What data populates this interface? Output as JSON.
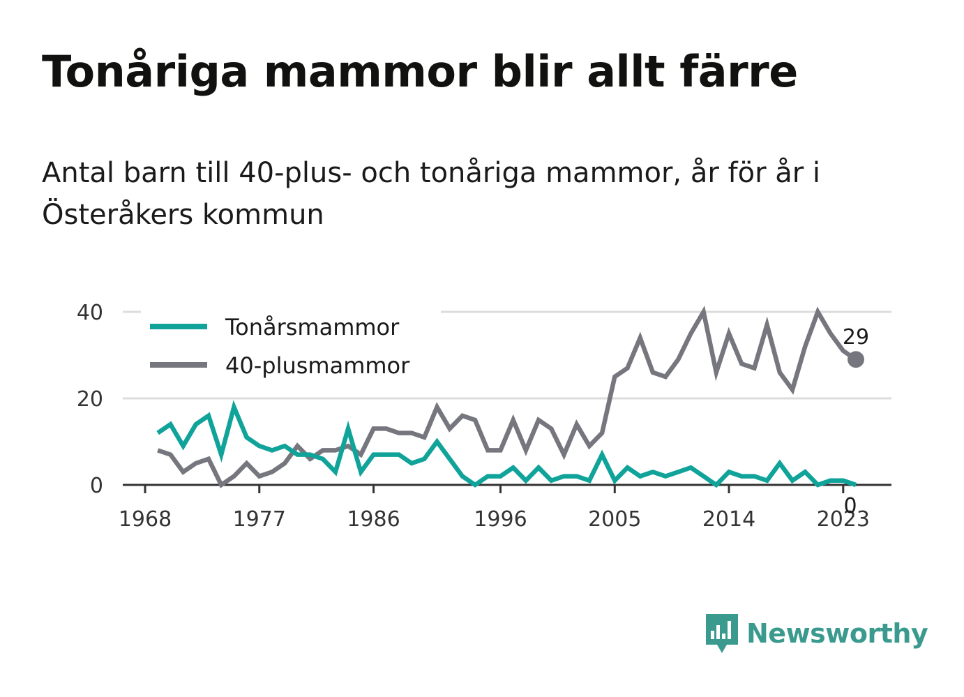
{
  "title": "Tonåriga mammor blir allt färre",
  "subtitle": "Antal barn till 40-plus- och tonåriga mammor, år för år i Österåkers kommun",
  "brand": "Newsworthy",
  "colors": {
    "teen": "#10a39a",
    "forty": "#76767e",
    "grid": "#dcdcdc",
    "axis": "#333333",
    "brand": "#3a9a8e"
  },
  "chart_data": {
    "type": "line",
    "x": [
      1969,
      1970,
      1971,
      1972,
      1973,
      1974,
      1975,
      1976,
      1977,
      1978,
      1979,
      1980,
      1981,
      1982,
      1983,
      1984,
      1985,
      1986,
      1987,
      1988,
      1989,
      1990,
      1991,
      1992,
      1993,
      1994,
      1995,
      1996,
      1997,
      1998,
      1999,
      2000,
      2001,
      2002,
      2003,
      2004,
      2005,
      2006,
      2007,
      2008,
      2009,
      2010,
      2011,
      2012,
      2013,
      2014,
      2015,
      2016,
      2017,
      2018,
      2019,
      2020,
      2021,
      2022,
      2023,
      2024
    ],
    "series": [
      {
        "name": "Tonårsmammor",
        "values": [
          12,
          14,
          9,
          14,
          16,
          7,
          18,
          11,
          9,
          8,
          9,
          7,
          7,
          6,
          3,
          13,
          3,
          7,
          7,
          7,
          5,
          6,
          10,
          6,
          2,
          0,
          2,
          2,
          4,
          1,
          4,
          1,
          2,
          2,
          1,
          7,
          1,
          4,
          2,
          3,
          2,
          3,
          4,
          2,
          0,
          3,
          2,
          2,
          1,
          5,
          1,
          3,
          0,
          1,
          1,
          0
        ]
      },
      {
        "name": "40-plusmammor",
        "values": [
          8,
          7,
          3,
          5,
          6,
          0,
          2,
          5,
          2,
          3,
          5,
          9,
          6,
          8,
          8,
          9,
          7,
          13,
          13,
          12,
          12,
          11,
          18,
          13,
          16,
          15,
          8,
          8,
          15,
          8,
          15,
          13,
          7,
          14,
          9,
          12,
          25,
          27,
          34,
          26,
          25,
          29,
          35,
          40,
          26,
          35,
          28,
          27,
          37,
          26,
          22,
          32,
          40,
          35,
          31,
          29
        ]
      }
    ],
    "xticks": [
      "1968",
      "1977",
      "1986",
      "1996",
      "2005",
      "2014",
      "2023"
    ],
    "yticks": [
      "0",
      "20",
      "40"
    ],
    "ylim": [
      0,
      40
    ],
    "xlim": [
      1968,
      2027
    ],
    "grid": true,
    "legend": "top-left",
    "end_labels": [
      "0",
      "29"
    ]
  }
}
